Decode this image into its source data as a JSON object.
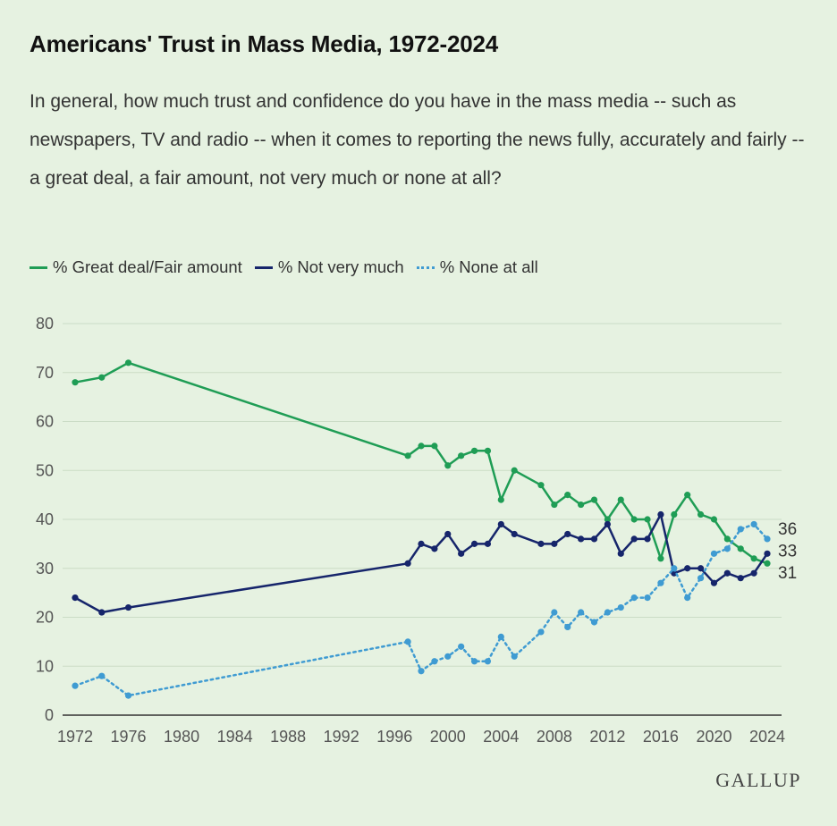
{
  "title": "Americans' Trust in Mass Media, 1972-2024",
  "subtitle": "In general, how much trust and confidence do you have in the mass media -- such as newspapers, TV and radio -- when it comes to reporting the news fully, accurately and fairly -- a great deal, a fair amount, not very much or none at all?",
  "legend": {
    "great": "% Great deal/Fair amount",
    "notmuch": "% Not very much",
    "none": "% None at all"
  },
  "logo": "GALLUP",
  "colors": {
    "great": "#1f9d55",
    "notmuch": "#16256b",
    "none": "#3f9bd2",
    "grid": "#cbdcc6",
    "background": "#e6f2e1"
  },
  "chart_data": {
    "type": "line",
    "title": "Americans' Trust in Mass Media, 1972-2024",
    "xlabel": "",
    "ylabel": "",
    "xlim": [
      1972,
      2024
    ],
    "ylim": [
      0,
      80
    ],
    "x_ticks": [
      1972,
      1976,
      1980,
      1984,
      1988,
      1992,
      1996,
      2000,
      2004,
      2008,
      2012,
      2016,
      2020,
      2024
    ],
    "y_ticks": [
      0,
      10,
      20,
      30,
      40,
      50,
      60,
      70,
      80
    ],
    "grid": true,
    "legend_position": "top-left",
    "x": [
      1972,
      1974,
      1976,
      1997,
      1998,
      1999,
      2000,
      2001,
      2002,
      2003,
      2004,
      2005,
      2007,
      2008,
      2009,
      2010,
      2011,
      2012,
      2013,
      2014,
      2015,
      2016,
      2017,
      2018,
      2019,
      2020,
      2021,
      2022,
      2023,
      2024
    ],
    "series": [
      {
        "name": "% Great deal/Fair amount",
        "style": "solid",
        "values": [
          68,
          69,
          72,
          53,
          55,
          55,
          51,
          53,
          54,
          54,
          44,
          50,
          47,
          43,
          45,
          43,
          44,
          40,
          44,
          40,
          40,
          32,
          41,
          45,
          41,
          40,
          36,
          34,
          32,
          31
        ]
      },
      {
        "name": "% Not very much",
        "style": "solid",
        "values": [
          24,
          21,
          22,
          31,
          35,
          34,
          37,
          33,
          35,
          35,
          39,
          37,
          35,
          35,
          37,
          36,
          36,
          39,
          33,
          36,
          36,
          41,
          29,
          30,
          30,
          27,
          29,
          28,
          29,
          33
        ]
      },
      {
        "name": "% None at all",
        "style": "dotted",
        "values": [
          6,
          8,
          4,
          15,
          9,
          11,
          12,
          14,
          11,
          11,
          16,
          12,
          17,
          21,
          18,
          21,
          19,
          21,
          22,
          24,
          24,
          27,
          30,
          24,
          28,
          33,
          34,
          38,
          39,
          36
        ]
      }
    ],
    "end_labels": [
      "36",
      "33",
      "31"
    ]
  }
}
